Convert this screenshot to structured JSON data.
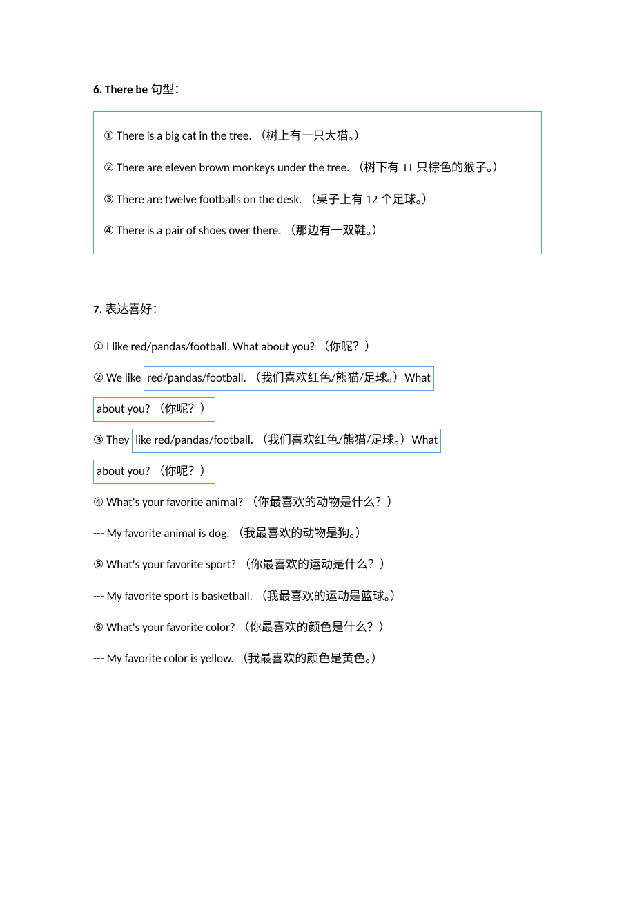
{
  "section6": {
    "heading_bold": "6. There be",
    "heading_rest": " 句型：",
    "items": [
      {
        "num": "①",
        "en": " There is a big cat in the tree. ",
        "cn": "（树上有一只大猫。）"
      },
      {
        "num": "②",
        "en": " There are eleven brown monkeys under the tree. ",
        "cn": "（树下有 11 只棕色的猴子。）"
      },
      {
        "num": "③",
        "en": " There are twelve footballs on the desk. ",
        "cn": "（桌子上有 12 个足球。）"
      },
      {
        "num": "④",
        "en": " There is a pair of shoes over there. ",
        "cn": "（那边有一双鞋。）"
      }
    ]
  },
  "section7": {
    "heading_bold": "7.",
    "heading_rest": " 表达喜好：",
    "item1": {
      "num": "①",
      "en": "  I like red/pandas/football. ",
      "cn1": "（我喜欢红色/熊猫/足球。）",
      "tail": "What about you? （你呢？）"
    },
    "item2": {
      "num": "②",
      "pre": " We  like ",
      "box1": "red/pandas/football. （我们喜欢红色/熊猫/足球。）What",
      "box2": "about you? （你呢？）"
    },
    "item3": {
      "num": "③",
      "pre": " They ",
      "box1": "like red/pandas/football. （我们喜欢红色/熊猫/足球。）What",
      "box2": "about you? （你呢？）"
    },
    "item4": {
      "num": "④",
      "q_en": " What's your favorite animal?  ",
      "q_cn": "（你最喜欢的动物是什么？）",
      "a_en": "--- My favorite animal is dog.  ",
      "a_cn": "（我最喜欢的动物是狗。）"
    },
    "item5": {
      "num": "⑤",
      "q_en": " What's your favorite sport?  ",
      "q_cn": "（你最喜欢的运动是什么？）",
      "a_en": "--- My favorite sport is basketball.  ",
      "a_cn": "（我最喜欢的运动是篮球。）"
    },
    "item6": {
      "num": "⑥",
      "q_en": " What's your favorite color?  ",
      "q_cn": "（你最喜欢的颜色是什么？）",
      "a_en": "--- My favorite color is yellow.  ",
      "a_cn": "（我最喜欢的颜色是黄色。）"
    }
  }
}
